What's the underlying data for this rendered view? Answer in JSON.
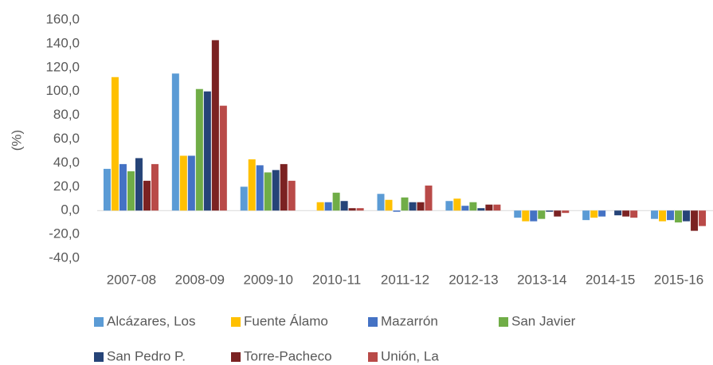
{
  "chart_data": {
    "type": "bar",
    "y_label": "(%)",
    "categories": [
      "2007-08",
      "2008-09",
      "2009-10",
      "2010-11",
      "2011-12",
      "2012-13",
      "2013-14",
      "2014-15",
      "2015-16"
    ],
    "series": [
      {
        "name": "Alcázares, Los",
        "color": "#5b9bd5",
        "values": [
          35,
          115,
          20,
          0,
          14,
          8,
          -6,
          -8,
          -7
        ]
      },
      {
        "name": "Fuente Álamo",
        "color": "#ffc000",
        "values": [
          112,
          46,
          43,
          7,
          9,
          10,
          -9,
          -6,
          -9
        ]
      },
      {
        "name": "Mazarrón",
        "color": "#4472c4",
        "values": [
          39,
          46,
          38,
          7,
          -1,
          4,
          -9,
          -5,
          -8
        ]
      },
      {
        "name": "San Javier",
        "color": "#70ad47",
        "values": [
          33,
          102,
          32,
          15,
          11,
          7,
          -7,
          0,
          -10
        ]
      },
      {
        "name": "San Pedro P.",
        "color": "#264478",
        "values": [
          44,
          100,
          34,
          8,
          7,
          2,
          -1,
          -4,
          -9
        ]
      },
      {
        "name": "Torre-Pacheco",
        "color": "#7b2222",
        "values": [
          25,
          143,
          39,
          2,
          7,
          5,
          -5,
          -5,
          -17
        ]
      },
      {
        "name": "Unión, La",
        "color": "#b94a48",
        "values": [
          39,
          88,
          25,
          2,
          21,
          5,
          -2,
          -6,
          -13
        ]
      }
    ],
    "ylim": [
      -40,
      160
    ],
    "yticks": [
      {
        "value": -40,
        "label": "-40,0"
      },
      {
        "value": -20,
        "label": "-20,0"
      },
      {
        "value": 0,
        "label": "0,0"
      },
      {
        "value": 20,
        "label": "20,0"
      },
      {
        "value": 40,
        "label": "40,0"
      },
      {
        "value": 60,
        "label": "60,0"
      },
      {
        "value": 80,
        "label": "80,0"
      },
      {
        "value": 100,
        "label": "100,0"
      },
      {
        "value": 120,
        "label": "120,0"
      },
      {
        "value": 140,
        "label": "140,0"
      },
      {
        "value": 160,
        "label": "160,0"
      }
    ],
    "grid": false
  }
}
